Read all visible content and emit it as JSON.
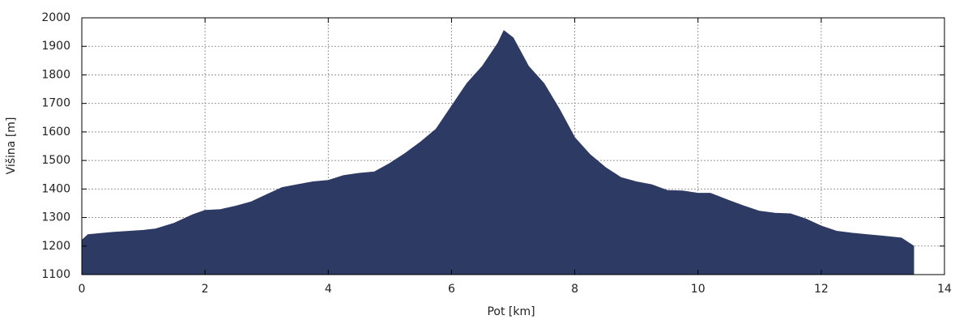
{
  "chart_data": {
    "type": "area",
    "x_label": "Pot [km]",
    "y_label": "Višina [m]",
    "x": [
      0,
      0.1,
      0.5,
      1.0,
      1.2,
      1.5,
      1.8,
      2.0,
      2.25,
      2.5,
      2.75,
      3.0,
      3.25,
      3.5,
      3.75,
      4.0,
      4.25,
      4.5,
      4.75,
      5.0,
      5.25,
      5.5,
      5.75,
      6.0,
      6.25,
      6.5,
      6.75,
      6.85,
      7.0,
      7.25,
      7.5,
      7.75,
      8.0,
      8.25,
      8.5,
      8.75,
      9.0,
      9.25,
      9.5,
      9.75,
      10.0,
      10.2,
      10.5,
      10.75,
      11.0,
      11.25,
      11.5,
      11.75,
      12.0,
      12.25,
      12.5,
      12.75,
      13.0,
      13.3,
      13.5
    ],
    "values": [
      1220,
      1240,
      1248,
      1255,
      1260,
      1280,
      1310,
      1325,
      1328,
      1340,
      1355,
      1380,
      1405,
      1415,
      1425,
      1430,
      1447,
      1455,
      1460,
      1490,
      1525,
      1565,
      1610,
      1690,
      1770,
      1830,
      1910,
      1955,
      1930,
      1830,
      1770,
      1680,
      1580,
      1520,
      1475,
      1440,
      1425,
      1415,
      1395,
      1393,
      1385,
      1385,
      1360,
      1340,
      1322,
      1315,
      1313,
      1295,
      1270,
      1252,
      1245,
      1240,
      1235,
      1228,
      1200
    ],
    "color": "#2d3a64",
    "xlim": [
      0,
      14
    ],
    "xticks": [
      0,
      2,
      4,
      6,
      8,
      10,
      12,
      14
    ],
    "ylim": [
      1100,
      2000
    ],
    "yticks": [
      1100,
      1200,
      1300,
      1400,
      1500,
      1600,
      1700,
      1800,
      1900,
      2000
    ],
    "grid": true
  }
}
